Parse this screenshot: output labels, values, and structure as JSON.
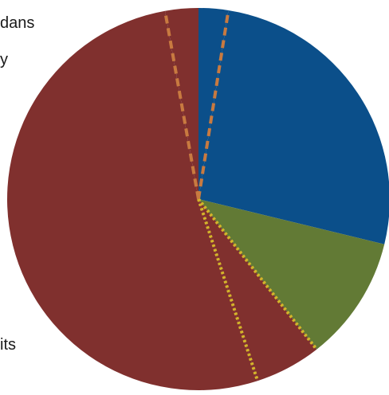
{
  "chart_data": {
    "type": "pie",
    "title": "",
    "start_angle_deg": 0,
    "direction": "clockwise",
    "slices": [
      {
        "value": 2.5,
        "color": "#0B4F8A"
      },
      {
        "value": 26.3,
        "color": "#0B4F8A"
      },
      {
        "value": 10.6,
        "color": "#627A35"
      },
      {
        "value": 5.6,
        "color": "#80302E"
      },
      {
        "value": 52.2,
        "color": "#80302E"
      },
      {
        "value": 2.8,
        "color": "#80302E"
      }
    ],
    "separators": [
      {
        "after_slice": 0,
        "style": "dashed",
        "color": "#C87A40"
      },
      {
        "after_slice": 2,
        "style": "dotted",
        "color": "#D4B52A"
      },
      {
        "after_slice": 3,
        "style": "dotted",
        "color": "#D4B52A"
      },
      {
        "after_slice": 4,
        "style": "dashed",
        "color": "#C87A40"
      }
    ],
    "label_fragments": [
      "dans",
      "y",
      "its"
    ]
  }
}
